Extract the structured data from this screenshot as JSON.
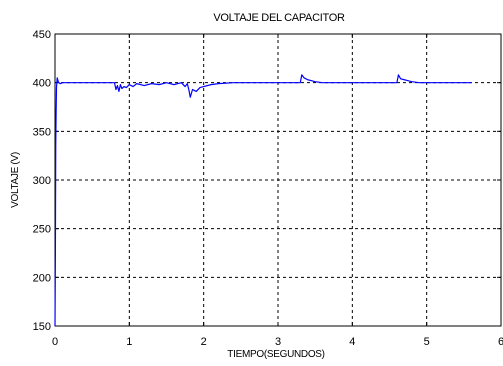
{
  "chart_data": {
    "type": "line",
    "title": "VOLTAJE DEL CAPACITOR",
    "xlabel": "TIEMPO(SEGUNDOS)",
    "ylabel": "VOLTAJE (V)",
    "xlim": [
      0,
      6
    ],
    "ylim": [
      150,
      450
    ],
    "xticks": [
      "0",
      "1",
      "2",
      "3",
      "4",
      "5",
      "6"
    ],
    "yticks": [
      "150",
      "200",
      "250",
      "300",
      "350",
      "400",
      "450"
    ],
    "grid": true,
    "series": [
      {
        "color": "#0000ff",
        "x": [
          0,
          0.005,
          0.01,
          0.015,
          0.02,
          0.03,
          0.04,
          0.05,
          0.07,
          0.1,
          0.15,
          0.3,
          0.5,
          0.8,
          0.82,
          0.84,
          0.86,
          0.88,
          0.9,
          0.93,
          0.96,
          1.0,
          1.05,
          1.1,
          1.2,
          1.3,
          1.4,
          1.5,
          1.6,
          1.7,
          1.75,
          1.78,
          1.8,
          1.82,
          1.85,
          1.9,
          1.95,
          2.0,
          2.1,
          2.2,
          2.4,
          2.6,
          2.8,
          3.0,
          3.2,
          3.3,
          3.32,
          3.35,
          3.4,
          3.45,
          3.5,
          3.6,
          3.8,
          4.0,
          4.5,
          4.6,
          4.62,
          4.65,
          4.7,
          4.75,
          4.8,
          4.9,
          5.0,
          5.3,
          5.6
        ],
        "y": [
          150,
          220,
          335,
          370,
          395,
          405,
          402,
          400,
          399,
          400,
          400,
          400,
          400,
          400,
          393,
          397,
          391,
          398,
          394,
          396,
          395,
          398,
          396,
          399,
          397,
          399,
          398,
          400,
          398,
          400,
          396,
          399,
          393,
          385,
          393,
          391,
          395,
          396,
          398,
          399,
          400,
          400,
          400,
          400,
          400,
          400,
          408,
          405,
          403,
          402,
          401,
          400,
          400,
          400,
          400,
          400,
          408,
          404,
          403,
          402,
          401,
          400,
          400,
          400,
          400
        ]
      }
    ]
  }
}
